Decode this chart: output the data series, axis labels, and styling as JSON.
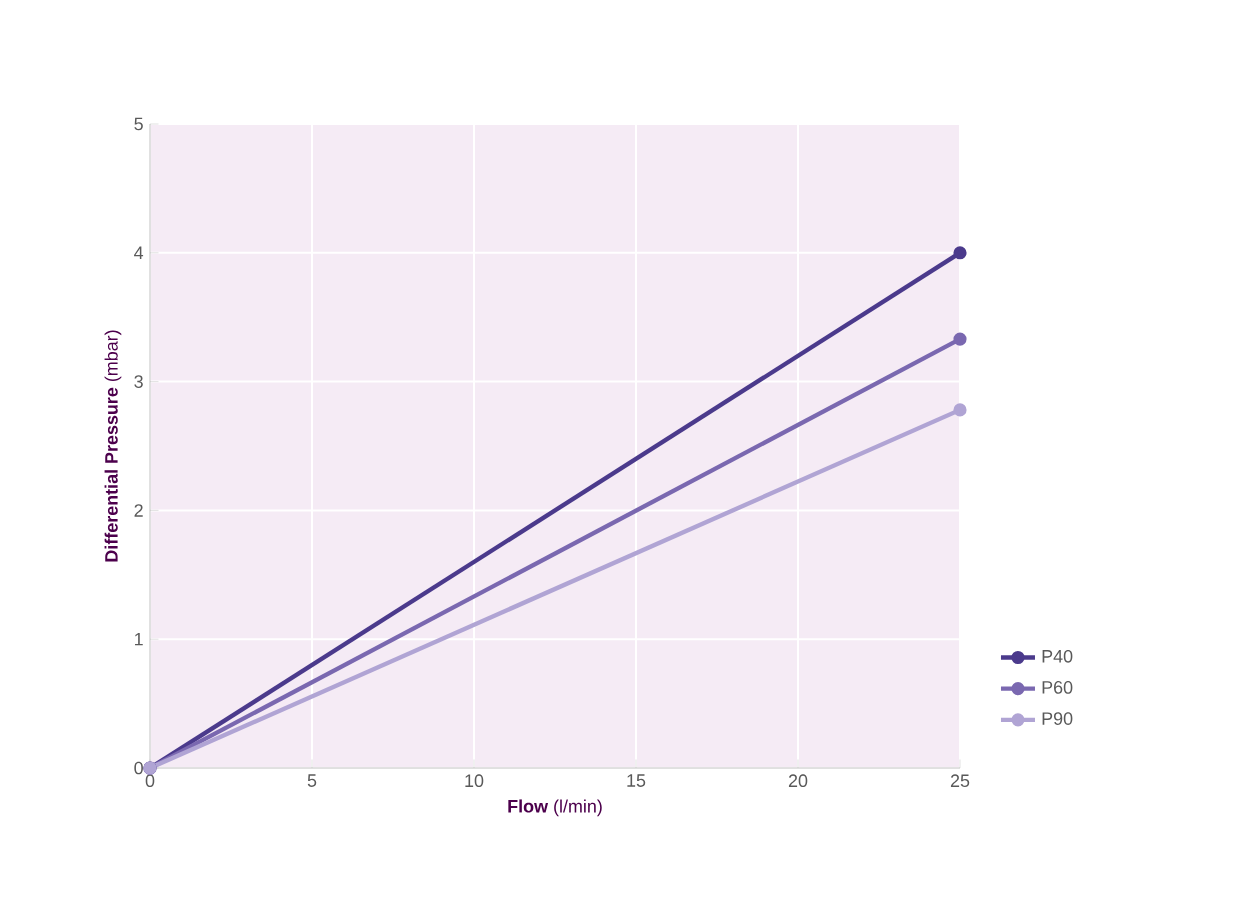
{
  "chart_data": {
    "type": "line",
    "xlabel": "**Flow** (l/min)",
    "ylabel": "**Differential Pressure** (mbar)",
    "x": [
      0,
      25
    ],
    "series": [
      {
        "name": "P40",
        "color": "#4b3a8c",
        "values": [
          0,
          4.0
        ]
      },
      {
        "name": "P60",
        "color": "#7a68b0",
        "values": [
          0,
          3.33
        ]
      },
      {
        "name": "P90",
        "color": "#b0a4d4",
        "values": [
          0,
          2.78
        ]
      }
    ],
    "xlim": [
      0,
      25
    ],
    "xticks": [
      0,
      5,
      10,
      15,
      20,
      25
    ],
    "ylim": [
      0,
      5
    ],
    "yticks": [
      0,
      1,
      2,
      3,
      4,
      5
    ],
    "grid": true,
    "legend": "right",
    "marker": "circle",
    "line_style": "solid"
  }
}
